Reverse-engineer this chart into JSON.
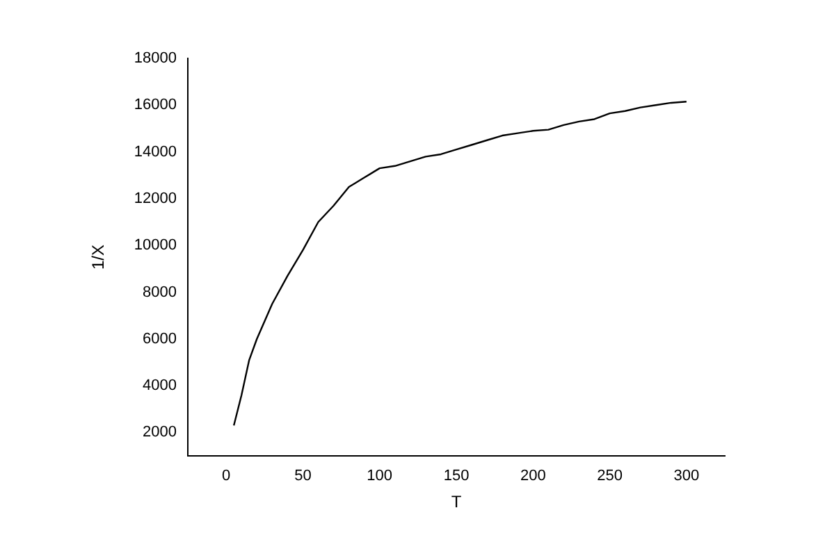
{
  "chart_data": {
    "type": "line",
    "xlabel": "T",
    "ylabel": "1/X",
    "xlim": [
      -25,
      325
    ],
    "xticks": [
      0,
      50,
      100,
      150,
      200,
      250,
      300
    ],
    "ylim": [
      1000,
      18000
    ],
    "yticks": [
      2000,
      4000,
      6000,
      8000,
      10000,
      12000,
      14000,
      16000,
      18000
    ],
    "grid": false,
    "legend": false,
    "marker": "none",
    "line_style": "solid",
    "series": [
      {
        "color": "#000000",
        "x": [
          5,
          10,
          15,
          20,
          30,
          40,
          50,
          60,
          70,
          80,
          90,
          100,
          110,
          120,
          130,
          140,
          150,
          160,
          170,
          180,
          190,
          200,
          210,
          220,
          230,
          240,
          250,
          260,
          270,
          280,
          290,
          300
        ],
        "values": [
          2300,
          3600,
          5100,
          6000,
          7500,
          8700,
          9800,
          11000,
          11700,
          12500,
          12900,
          13300,
          13400,
          13600,
          13800,
          13900,
          14100,
          14300,
          14500,
          14700,
          14800,
          14900,
          14950,
          15150,
          15300,
          15400,
          15650,
          15750,
          15900,
          16000,
          16100,
          16150
        ]
      }
    ]
  }
}
